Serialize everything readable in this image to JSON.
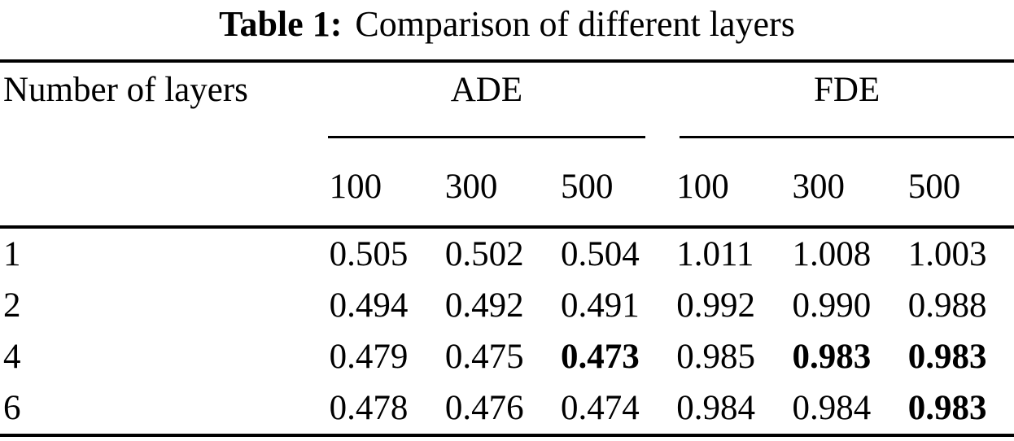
{
  "colors": {
    "background": "#ffffff",
    "text": "#000000",
    "rule": "#000000"
  },
  "caption": {
    "label": "Table 1:",
    "text": "Comparison of different layers"
  },
  "table": {
    "row_header": "Number of layers",
    "groups": [
      {
        "label": "ADE",
        "subcols": [
          "100",
          "300",
          "500"
        ]
      },
      {
        "label": "FDE",
        "subcols": [
          "100",
          "300",
          "500"
        ]
      }
    ],
    "rows": [
      {
        "label": "1",
        "cells": [
          {
            "v": "0.505",
            "b": 0
          },
          {
            "v": "0.502",
            "b": 0
          },
          {
            "v": "0.504",
            "b": 0
          },
          {
            "v": "1.011",
            "b": 0
          },
          {
            "v": "1.008",
            "b": 0
          },
          {
            "v": "1.003",
            "b": 0
          }
        ]
      },
      {
        "label": "2",
        "cells": [
          {
            "v": "0.494",
            "b": 0
          },
          {
            "v": "0.492",
            "b": 0
          },
          {
            "v": "0.491",
            "b": 0
          },
          {
            "v": "0.992",
            "b": 0
          },
          {
            "v": "0.990",
            "b": 0
          },
          {
            "v": "0.988",
            "b": 0
          }
        ]
      },
      {
        "label": "4",
        "cells": [
          {
            "v": "0.479",
            "b": 0
          },
          {
            "v": "0.475",
            "b": 0
          },
          {
            "v": "0.473",
            "b": 1
          },
          {
            "v": "0.985",
            "b": 0
          },
          {
            "v": "0.983",
            "b": 1
          },
          {
            "v": "0.983",
            "b": 1
          }
        ]
      },
      {
        "label": "6",
        "cells": [
          {
            "v": "0.478",
            "b": 0
          },
          {
            "v": "0.476",
            "b": 0
          },
          {
            "v": "0.474",
            "b": 0
          },
          {
            "v": "0.984",
            "b": 0
          },
          {
            "v": "0.984",
            "b": 0
          },
          {
            "v": "0.983",
            "b": 1
          }
        ]
      }
    ]
  },
  "chart_data": {
    "type": "table",
    "title": "Table 1: Comparison of different layers",
    "columns": [
      "Number of layers",
      "ADE 100",
      "ADE 300",
      "ADE 500",
      "FDE 100",
      "FDE 300",
      "FDE 500"
    ],
    "rows": [
      [
        1,
        0.505,
        0.502,
        0.504,
        1.011,
        1.008,
        1.003
      ],
      [
        2,
        0.494,
        0.492,
        0.491,
        0.992,
        0.99,
        0.988
      ],
      [
        4,
        0.479,
        0.475,
        0.473,
        0.985,
        0.983,
        0.983
      ],
      [
        6,
        0.478,
        0.476,
        0.474,
        0.984,
        0.984,
        0.983
      ]
    ],
    "bold_best_values": [
      "row 4: ADE 500 = 0.473",
      "row 4: FDE 300 = 0.983",
      "row 4: FDE 500 = 0.983",
      "row 6: FDE 500 = 0.983"
    ]
  }
}
